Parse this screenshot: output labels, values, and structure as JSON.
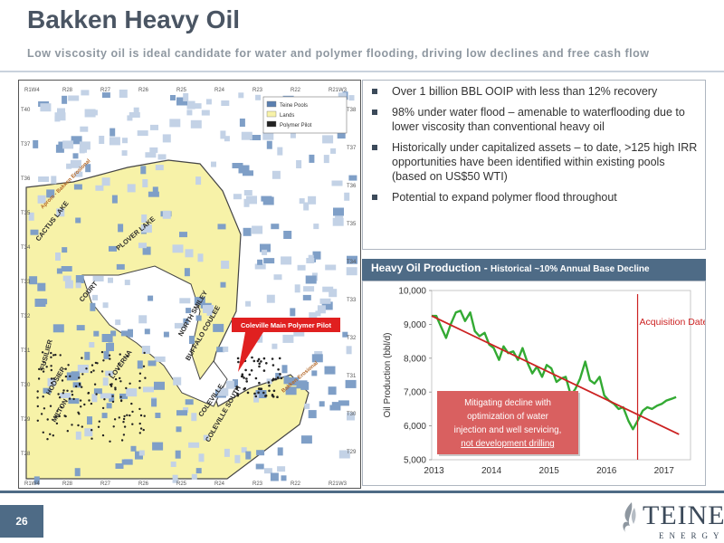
{
  "header": {
    "title": "Bakken Heavy Oil",
    "subtitle": "Low viscosity oil is ideal candidate for water and polymer flooding, driving low declines and free cash flow"
  },
  "bullets": [
    "Over 1 billion BBL OOIP with less than 12% recovery",
    "98% under water flood – amenable to waterflooding due to lower viscosity than conventional heavy oil",
    "Historically under capitalized assets – to date, >125 high IRR opportunities have been identified within existing pools (based on US$50 WTI)",
    "Potential to expand polymer flood throughout"
  ],
  "map": {
    "range_labels_top": [
      "R1W4",
      "R28",
      "R27",
      "R26",
      "R25",
      "R24",
      "R23",
      "R22",
      "R21W3"
    ],
    "range_labels_bottom": [
      "R1W4",
      "R28",
      "R27",
      "R26",
      "R25",
      "R24",
      "R23",
      "R22",
      "R21W3"
    ],
    "township_labels_left": [
      "T40",
      "T37",
      "T36",
      "T35",
      "T34",
      "T33",
      "T32",
      "T31",
      "T30",
      "T29",
      "T28"
    ],
    "township_labels_right": [
      "T38",
      "T37",
      "T36",
      "T35",
      "T34",
      "T33",
      "T32",
      "T31",
      "T30",
      "T29"
    ],
    "pool_labels": [
      "CACTUS LAKE",
      "PLOVER LAKE",
      "COURT",
      "NORTH SMILEY",
      "BUFFALO COULEE",
      "FUSILIER",
      "HOOSIER",
      "MILTON",
      "LOVERNA",
      "COLEVILLE",
      "COLEVILLE SOUTH"
    ],
    "trend_labels": [
      "Aprom - Bakken Erosional",
      "Bakken Erosional"
    ],
    "pilot_callout": "Coleville Main Polymer Pilot",
    "legend_lines": [
      "Teine Pools",
      "Lands",
      "Polymer Pilot"
    ]
  },
  "chart_header": {
    "title": "Heavy Oil Production - ",
    "subtitle": "Historical ~10% Annual Base Decline"
  },
  "chart_data": {
    "type": "line",
    "title": "Heavy Oil Production - Historical ~10% Annual Base Decline",
    "ylabel": "Oil Production (bbl/d)",
    "ylim": [
      5000,
      10000
    ],
    "xlim": [
      2013,
      2017.5
    ],
    "yticks": [
      "5,000",
      "6,000",
      "7,000",
      "8,000",
      "9,000",
      "10,000"
    ],
    "xticks": [
      "2013",
      "2014",
      "2015",
      "2016",
      "2017"
    ],
    "series": [
      {
        "kind": "production",
        "color": "#33aa33",
        "x": [
          2013.0,
          2013.08,
          2013.17,
          2013.25,
          2013.33,
          2013.42,
          2013.5,
          2013.58,
          2013.67,
          2013.75,
          2013.83,
          2013.92,
          2014.0,
          2014.08,
          2014.17,
          2014.25,
          2014.33,
          2014.42,
          2014.5,
          2014.58,
          2014.67,
          2014.75,
          2014.83,
          2014.92,
          2015.0,
          2015.08,
          2015.17,
          2015.25,
          2015.33,
          2015.42,
          2015.5,
          2015.58,
          2015.67,
          2015.75,
          2015.83,
          2015.92,
          2016.0,
          2016.08,
          2016.17,
          2016.25,
          2016.33,
          2016.42,
          2016.5,
          2016.58,
          2016.67,
          2016.75,
          2016.83,
          2016.92,
          2017.0,
          2017.08,
          2017.17,
          2017.25
        ],
        "y": [
          9250,
          9250,
          8900,
          8600,
          9000,
          9350,
          9400,
          9100,
          9350,
          8800,
          8650,
          8750,
          8400,
          8300,
          7950,
          8350,
          8150,
          8200,
          7950,
          8300,
          7850,
          7550,
          7750,
          7450,
          7800,
          7700,
          7300,
          7400,
          7450,
          6900,
          7100,
          7400,
          7900,
          7350,
          7250,
          7450,
          6900,
          6750,
          6650,
          6500,
          6550,
          6150,
          5900,
          6150,
          6450,
          6550,
          6500,
          6600,
          6650,
          6750,
          6800,
          6850
        ]
      },
      {
        "kind": "trend",
        "color": "#cc2222",
        "x": [
          2013.0,
          2017.3
        ],
        "y": [
          9250,
          5750
        ]
      }
    ],
    "annotations": {
      "acquisition_label": "Acquisition Date",
      "acquisition_x": 2016.58,
      "note_lines": [
        "Mitigating decline with",
        "optimization of water",
        "injection and well servicing,",
        "not development drilling"
      ]
    }
  },
  "footer": {
    "page_number": "26",
    "logo_name": "TEINE",
    "logo_sub": "ENERGY"
  },
  "colors": {
    "accent": "#4e6b86",
    "title": "#4a5563",
    "land_yellow": "#f7f2a8",
    "pool_blue": "#7f9fc7",
    "production_green": "#33aa33",
    "trend_red": "#cc2222",
    "note_box": "#d96060"
  }
}
